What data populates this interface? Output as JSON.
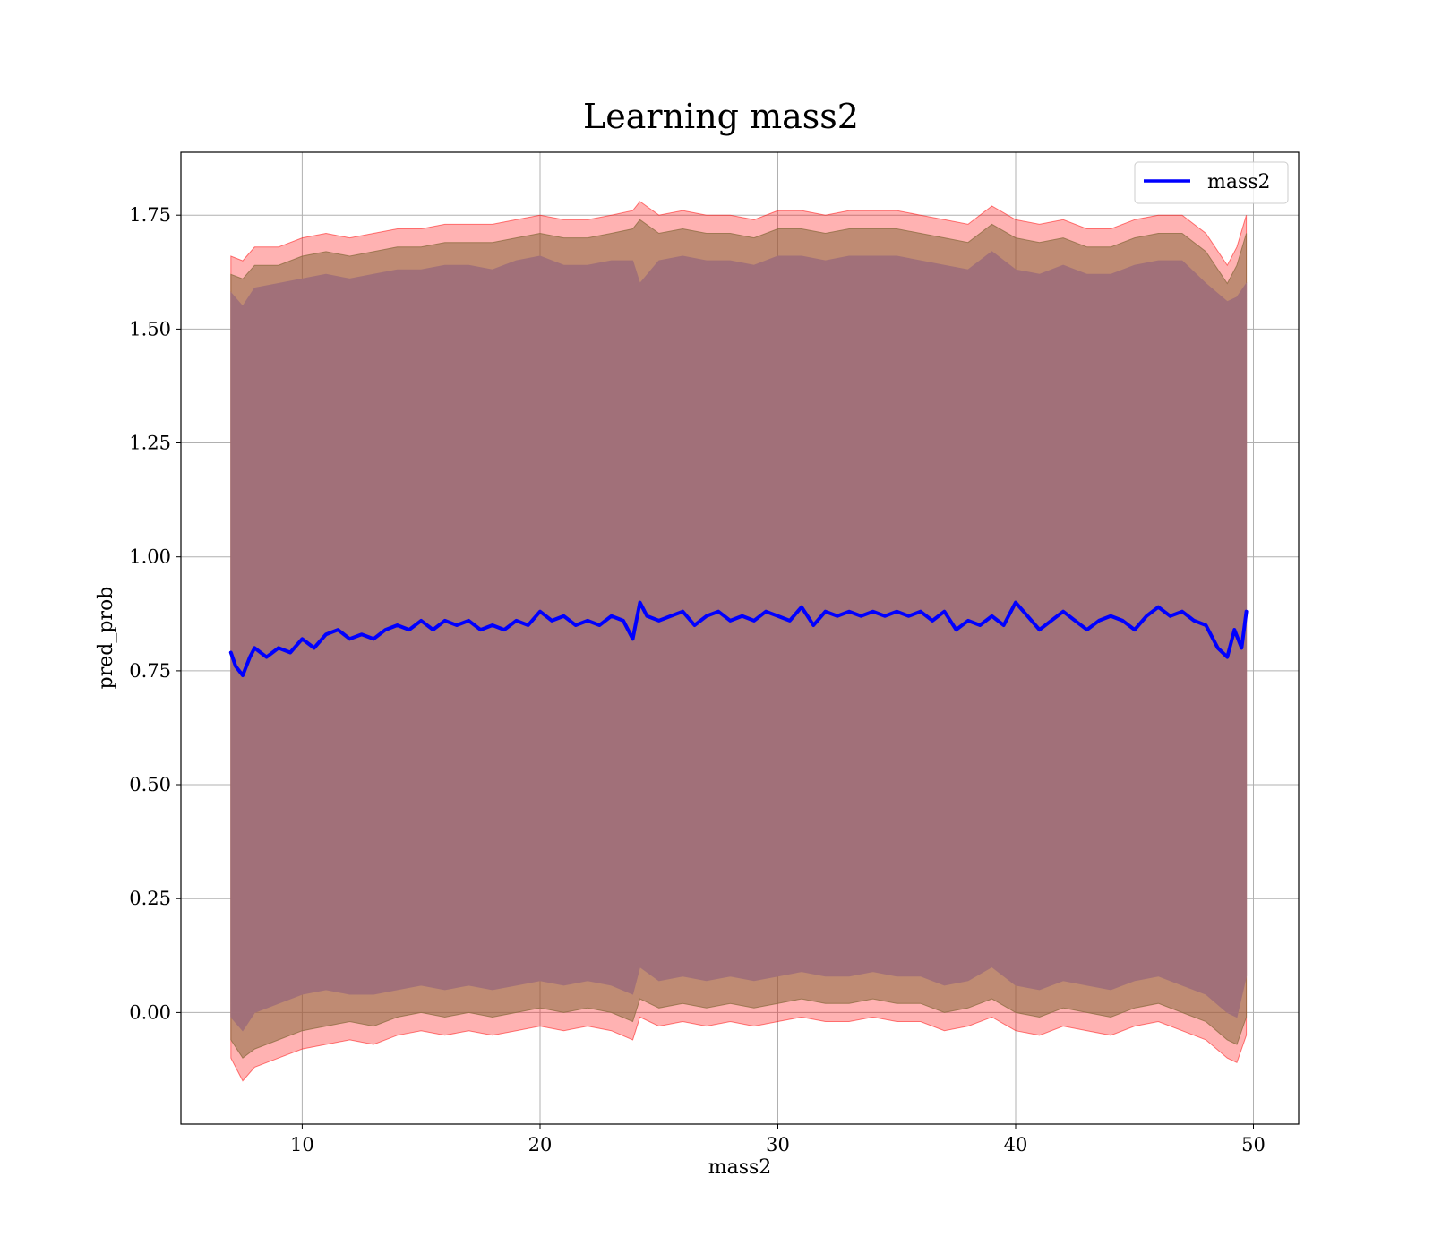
{
  "chart_data": {
    "type": "line",
    "title": "Learning mass2",
    "xlabel": "mass2",
    "ylabel": "pred_prob",
    "xlim": [
      4.9,
      51.9
    ],
    "ylim": [
      -0.245,
      1.888
    ],
    "xticks": [
      10,
      20,
      30,
      40,
      50
    ],
    "xtick_labels": [
      "10",
      "20",
      "30",
      "40",
      "50"
    ],
    "yticks": [
      0.0,
      0.25,
      0.5,
      0.75,
      1.0,
      1.25,
      1.5,
      1.75
    ],
    "ytick_labels": [
      "0.00",
      "0.25",
      "0.50",
      "0.75",
      "1.00",
      "1.25",
      "1.50",
      "1.75"
    ],
    "grid": true,
    "legend": {
      "position": "top-right",
      "entries": [
        "mass2"
      ]
    },
    "series": [
      {
        "name": "mass2",
        "kind": "line",
        "color": "#0000ff",
        "x": [
          7.0,
          7.2,
          7.5,
          7.8,
          8.0,
          8.5,
          9.0,
          9.5,
          10.0,
          10.5,
          11.0,
          11.5,
          12.0,
          12.5,
          13.0,
          13.5,
          14.0,
          14.5,
          15.0,
          15.5,
          16.0,
          16.5,
          17.0,
          17.5,
          18.0,
          18.5,
          19.0,
          19.5,
          20.0,
          20.5,
          21.0,
          21.5,
          22.0,
          22.5,
          23.0,
          23.5,
          23.9,
          24.2,
          24.5,
          25.0,
          25.5,
          26.0,
          26.5,
          27.0,
          27.5,
          28.0,
          28.5,
          29.0,
          29.5,
          30.0,
          30.5,
          31.0,
          31.5,
          32.0,
          32.5,
          33.0,
          33.5,
          34.0,
          34.5,
          35.0,
          35.5,
          36.0,
          36.5,
          37.0,
          37.5,
          38.0,
          38.5,
          39.0,
          39.5,
          40.0,
          40.5,
          41.0,
          41.5,
          42.0,
          42.5,
          43.0,
          43.5,
          44.0,
          44.5,
          45.0,
          45.5,
          46.0,
          46.5,
          47.0,
          47.5,
          48.0,
          48.5,
          48.9,
          49.2,
          49.5,
          49.7
        ],
        "y": [
          0.79,
          0.76,
          0.74,
          0.78,
          0.8,
          0.78,
          0.8,
          0.79,
          0.82,
          0.8,
          0.83,
          0.84,
          0.82,
          0.83,
          0.82,
          0.84,
          0.85,
          0.84,
          0.86,
          0.84,
          0.86,
          0.85,
          0.86,
          0.84,
          0.85,
          0.84,
          0.86,
          0.85,
          0.88,
          0.86,
          0.87,
          0.85,
          0.86,
          0.85,
          0.87,
          0.86,
          0.82,
          0.9,
          0.87,
          0.86,
          0.87,
          0.88,
          0.85,
          0.87,
          0.88,
          0.86,
          0.87,
          0.86,
          0.88,
          0.87,
          0.86,
          0.89,
          0.85,
          0.88,
          0.87,
          0.88,
          0.87,
          0.88,
          0.87,
          0.88,
          0.87,
          0.88,
          0.86,
          0.88,
          0.84,
          0.86,
          0.85,
          0.87,
          0.85,
          0.9,
          0.87,
          0.84,
          0.86,
          0.88,
          0.86,
          0.84,
          0.86,
          0.87,
          0.86,
          0.84,
          0.87,
          0.89,
          0.87,
          0.88,
          0.86,
          0.85,
          0.8,
          0.78,
          0.84,
          0.8,
          0.88
        ]
      },
      {
        "kind": "band",
        "color": "#ff0000",
        "opacity": 0.3,
        "x": [
          7.0,
          7.5,
          8.0,
          9.0,
          10.0,
          11.0,
          12.0,
          13.0,
          14.0,
          15.0,
          16.0,
          17.0,
          18.0,
          19.0,
          20.0,
          21.0,
          22.0,
          23.0,
          23.9,
          24.2,
          25.0,
          26.0,
          27.0,
          28.0,
          29.0,
          30.0,
          31.0,
          32.0,
          33.0,
          34.0,
          35.0,
          36.0,
          37.0,
          38.0,
          39.0,
          40.0,
          41.0,
          42.0,
          43.0,
          44.0,
          45.0,
          46.0,
          47.0,
          48.0,
          48.9,
          49.3,
          49.7
        ],
        "lower": [
          -0.1,
          -0.15,
          -0.12,
          -0.1,
          -0.08,
          -0.07,
          -0.06,
          -0.07,
          -0.05,
          -0.04,
          -0.05,
          -0.04,
          -0.05,
          -0.04,
          -0.03,
          -0.04,
          -0.03,
          -0.04,
          -0.06,
          -0.01,
          -0.03,
          -0.02,
          -0.03,
          -0.02,
          -0.03,
          -0.02,
          -0.01,
          -0.02,
          -0.02,
          -0.01,
          -0.02,
          -0.02,
          -0.04,
          -0.03,
          -0.01,
          -0.04,
          -0.05,
          -0.03,
          -0.04,
          -0.05,
          -0.03,
          -0.02,
          -0.04,
          -0.06,
          -0.1,
          -0.11,
          -0.05
        ],
        "upper": [
          1.66,
          1.65,
          1.68,
          1.68,
          1.7,
          1.71,
          1.7,
          1.71,
          1.72,
          1.72,
          1.73,
          1.73,
          1.73,
          1.74,
          1.75,
          1.74,
          1.74,
          1.75,
          1.76,
          1.78,
          1.75,
          1.76,
          1.75,
          1.75,
          1.74,
          1.76,
          1.76,
          1.75,
          1.76,
          1.76,
          1.76,
          1.75,
          1.74,
          1.73,
          1.77,
          1.74,
          1.73,
          1.74,
          1.72,
          1.72,
          1.74,
          1.75,
          1.75,
          1.71,
          1.64,
          1.68,
          1.75
        ]
      },
      {
        "kind": "band",
        "color": "#8b6b3f",
        "opacity": 0.55,
        "x": [
          7.0,
          7.5,
          8.0,
          9.0,
          10.0,
          11.0,
          12.0,
          13.0,
          14.0,
          15.0,
          16.0,
          17.0,
          18.0,
          19.0,
          20.0,
          21.0,
          22.0,
          23.0,
          23.9,
          24.2,
          25.0,
          26.0,
          27.0,
          28.0,
          29.0,
          30.0,
          31.0,
          32.0,
          33.0,
          34.0,
          35.0,
          36.0,
          37.0,
          38.0,
          39.0,
          40.0,
          41.0,
          42.0,
          43.0,
          44.0,
          45.0,
          46.0,
          47.0,
          48.0,
          48.9,
          49.3,
          49.7
        ],
        "lower": [
          -0.06,
          -0.1,
          -0.08,
          -0.06,
          -0.04,
          -0.03,
          -0.02,
          -0.03,
          -0.01,
          0.0,
          -0.01,
          0.0,
          -0.01,
          0.0,
          0.01,
          0.0,
          0.01,
          0.0,
          -0.02,
          0.03,
          0.01,
          0.02,
          0.01,
          0.02,
          0.01,
          0.02,
          0.03,
          0.02,
          0.02,
          0.03,
          0.02,
          0.02,
          0.0,
          0.01,
          0.03,
          0.0,
          -0.01,
          0.01,
          0.0,
          -0.01,
          0.01,
          0.02,
          0.0,
          -0.02,
          -0.06,
          -0.07,
          -0.01
        ],
        "upper": [
          1.62,
          1.61,
          1.64,
          1.64,
          1.66,
          1.67,
          1.66,
          1.67,
          1.68,
          1.68,
          1.69,
          1.69,
          1.69,
          1.7,
          1.71,
          1.7,
          1.7,
          1.71,
          1.72,
          1.74,
          1.71,
          1.72,
          1.71,
          1.71,
          1.7,
          1.72,
          1.72,
          1.71,
          1.72,
          1.72,
          1.72,
          1.71,
          1.7,
          1.69,
          1.73,
          1.7,
          1.69,
          1.7,
          1.68,
          1.68,
          1.7,
          1.71,
          1.71,
          1.67,
          1.6,
          1.64,
          1.71
        ]
      },
      {
        "kind": "band",
        "color": "#a17079",
        "opacity": 1.0,
        "x": [
          7.0,
          7.5,
          8.0,
          9.0,
          10.0,
          11.0,
          12.0,
          13.0,
          14.0,
          15.0,
          16.0,
          17.0,
          18.0,
          19.0,
          20.0,
          21.0,
          22.0,
          23.0,
          23.9,
          24.2,
          25.0,
          26.0,
          27.0,
          28.0,
          29.0,
          30.0,
          31.0,
          32.0,
          33.0,
          34.0,
          35.0,
          36.0,
          37.0,
          38.0,
          39.0,
          40.0,
          41.0,
          42.0,
          43.0,
          44.0,
          45.0,
          46.0,
          47.0,
          48.0,
          48.9,
          49.3,
          49.7
        ],
        "lower": [
          -0.01,
          -0.04,
          0.0,
          0.02,
          0.04,
          0.05,
          0.04,
          0.04,
          0.05,
          0.06,
          0.05,
          0.06,
          0.05,
          0.06,
          0.07,
          0.06,
          0.07,
          0.06,
          0.04,
          0.1,
          0.07,
          0.08,
          0.07,
          0.08,
          0.07,
          0.08,
          0.09,
          0.08,
          0.08,
          0.09,
          0.08,
          0.08,
          0.06,
          0.07,
          0.1,
          0.06,
          0.05,
          0.07,
          0.06,
          0.05,
          0.07,
          0.08,
          0.06,
          0.04,
          0.0,
          -0.01,
          0.08
        ],
        "upper": [
          1.58,
          1.55,
          1.59,
          1.6,
          1.61,
          1.62,
          1.61,
          1.62,
          1.63,
          1.63,
          1.64,
          1.64,
          1.63,
          1.65,
          1.66,
          1.64,
          1.64,
          1.65,
          1.65,
          1.6,
          1.65,
          1.66,
          1.65,
          1.65,
          1.64,
          1.66,
          1.66,
          1.65,
          1.66,
          1.66,
          1.66,
          1.65,
          1.64,
          1.63,
          1.67,
          1.63,
          1.62,
          1.64,
          1.62,
          1.62,
          1.64,
          1.65,
          1.65,
          1.6,
          1.56,
          1.57,
          1.6
        ]
      }
    ]
  }
}
